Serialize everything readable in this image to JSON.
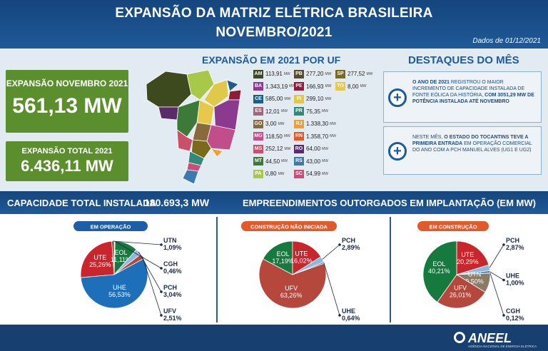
{
  "header": {
    "title": "EXPANSÃO DA MATRIZ ELÉTRICA BRASILEIRA",
    "subtitle": "NOVEMBRO/2021",
    "date": "Dados de 01/12/2021"
  },
  "expansion": {
    "month_label": "EXPANSÃO NOVEMBRO 2021",
    "month_value": "561,13 MW",
    "total_label": "EXPANSÃO TOTAL 2021",
    "total_value": "6.436,11 MW"
  },
  "uf": {
    "title": "EXPANSÃO EM 2021 POR UF",
    "unit": "MW",
    "columns": [
      [
        {
          "code": "AM",
          "value": "113,91",
          "color": "#3d4a1e"
        },
        {
          "code": "BA",
          "value": "1.343,19",
          "color": "#8b3a8f"
        },
        {
          "code": "CE",
          "value": "585,00",
          "color": "#1b5e8a"
        },
        {
          "code": "ES",
          "value": "12,01",
          "color": "#a8627a"
        },
        {
          "code": "GO",
          "value": "3,00",
          "color": "#8a6a3a"
        },
        {
          "code": "MG",
          "value": "118,50",
          "color": "#c14e8a"
        },
        {
          "code": "MS",
          "value": "252,12",
          "color": "#c94f6a"
        },
        {
          "code": "MT",
          "value": "44,50",
          "color": "#3d7a3a"
        },
        {
          "code": "PA",
          "value": "0,80",
          "color": "#a8c84a"
        }
      ],
      [
        {
          "code": "PB",
          "value": "277,20",
          "color": "#5a4a2a"
        },
        {
          "code": "PE",
          "value": "166,93",
          "color": "#8a1e3a"
        },
        {
          "code": "PI",
          "value": "299,10",
          "color": "#e0c84a"
        },
        {
          "code": "PR",
          "value": "75,35",
          "color": "#2f8a7a"
        },
        {
          "code": "RJ",
          "value": "1.338,30",
          "color": "#f0a030"
        },
        {
          "code": "RN",
          "value": "1.358,70",
          "color": "#e05a2a"
        },
        {
          "code": "RO",
          "value": "64,00",
          "color": "#5a2a6a"
        },
        {
          "code": "RS",
          "value": "43,00",
          "color": "#3a7ab0"
        },
        {
          "code": "SC",
          "value": "54,99",
          "color": "#d04a7a"
        }
      ],
      [
        {
          "code": "SP",
          "value": "277,52",
          "color": "#7a6a1a"
        },
        {
          "code": "TO",
          "value": "8,00",
          "color": "#e8c84a"
        }
      ]
    ]
  },
  "highlights": {
    "title": "DESTAQUES DO MÊS",
    "items": [
      [
        {
          "text": "O ANO DE 2021",
          "bold": true
        },
        {
          "text": " REGISTROU O MAIOR INCREMENTO DE CAPACIDADE INSTALADA DE FONTE EÓLICA DA HISTÓRIA, ",
          "bold": false
        },
        {
          "text": "COM 3051,29 MW DE POTÊNCIA INSTALADA ATÉ NOVEMBRO",
          "bold": true
        }
      ],
      [
        {
          "text": "NESTE MÊS, ",
          "bold": false
        },
        {
          "text": "O ESTADO DO TOCANTINS TEVE A PRIMEIRA ENTRADA",
          "bold": true
        },
        {
          "text": " EM OPERAÇÃO COMERCIAL DO ANO COM A PCH MANUEL ALVES (UG1 E UG2)",
          "bold": false
        }
      ]
    ]
  },
  "capacity": {
    "label": "CAPACIDADE TOTAL INSTALADA",
    "value": "180.693,3 MW"
  },
  "projects_title": "EMPREENDIMENTOS OUTORGADOS EM IMPLANTAÇÃO (EM MW)",
  "chart_data": [
    {
      "type": "pie",
      "title": "EM OPERAÇÃO",
      "title_color": "#1c5fa8",
      "categories": [
        "UTE",
        "UTN",
        "CGH",
        "EOL",
        "PCH",
        "UFV",
        "UHE"
      ],
      "values": [
        25.26,
        1.09,
        0.46,
        11.11,
        3.04,
        2.51,
        56.53
      ],
      "value_labels": [
        "25,26%",
        "1,09%",
        "0,46%",
        "11,11%",
        "3,04%",
        "2,51%",
        "56,53%"
      ],
      "colors": [
        "#c8262c",
        "#5a4a3a",
        "#e8c060",
        "#167a3e",
        "#8fb8de",
        "#b5473c",
        "#1c6fb8"
      ]
    },
    {
      "type": "pie",
      "title": "CONSTRUÇÃO NÃO INICIADA",
      "title_color": "#e05a2a",
      "categories": [
        "EOL",
        "UTE",
        "PCH",
        "UHE",
        "UFV"
      ],
      "values": [
        17.19,
        16.02,
        2.89,
        0.64,
        63.26
      ],
      "value_labels": [
        "17,19%",
        "16,02%",
        "2,89%",
        "0,64%",
        "63,26%"
      ],
      "colors": [
        "#167a3e",
        "#c8262c",
        "#8fb8de",
        "#1c6fb8",
        "#b5473c"
      ]
    },
    {
      "type": "pie",
      "title": "EM CONSTRUÇÃO",
      "title_color": "#e05a2a",
      "categories": [
        "UTE",
        "PCH",
        "UHE",
        "CGH",
        "UTN",
        "UFV",
        "EOL"
      ],
      "values": [
        20.29,
        2.87,
        1.0,
        0.12,
        9.5,
        26.01,
        40.21
      ],
      "value_labels": [
        "20,29%",
        "2,87%",
        "1,00%",
        "0,12%",
        "9,50%",
        "26,01%",
        "40,21%"
      ],
      "colors": [
        "#c8262c",
        "#8fb8de",
        "#1c6fb8",
        "#e8c060",
        "#8b7a66",
        "#b5473c",
        "#167a3e"
      ]
    }
  ],
  "footer": {
    "logo": "ANEEL",
    "agency": "AGÊNCIA NACIONAL DE ENERGIA ELÉTRICA"
  }
}
